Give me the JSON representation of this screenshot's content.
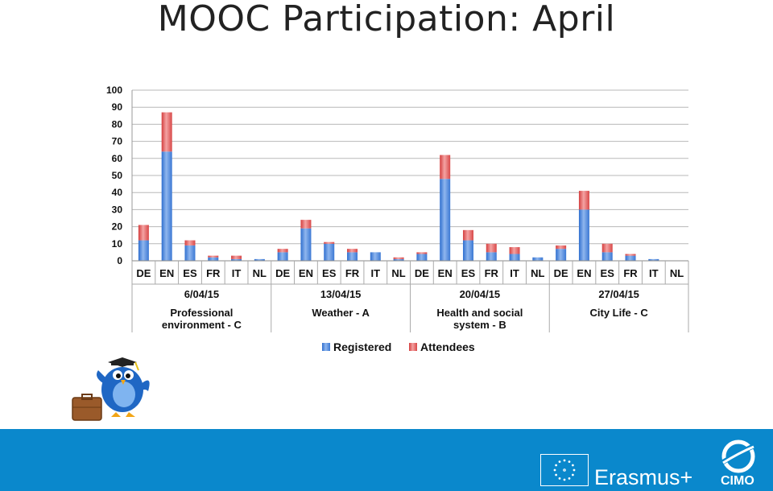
{
  "page": {
    "title": "MOOC Participation: April"
  },
  "colors": {
    "registered": "#4a86d8",
    "attendees": "#e46060",
    "footer": "#0a88cc"
  },
  "branding": {
    "program": "Erasmus+",
    "org": "CIMO"
  },
  "chart_data": {
    "type": "bar",
    "stacked": true,
    "ylim": [
      0,
      100
    ],
    "yticks": [
      0,
      10,
      20,
      30,
      40,
      50,
      60,
      70,
      80,
      90,
      100
    ],
    "grid": true,
    "legend_position": "bottom",
    "groups": [
      {
        "date": "6/04/15",
        "name": "Professional environment - C"
      },
      {
        "date": "13/04/15",
        "name": "Weather - A"
      },
      {
        "date": "20/04/15",
        "name": "Health and social system - B"
      },
      {
        "date": "27/04/15",
        "name": "City Life - C"
      }
    ],
    "categories": [
      "DE",
      "EN",
      "ES",
      "FR",
      "IT",
      "NL",
      "DE",
      "EN",
      "ES",
      "FR",
      "IT",
      "NL",
      "DE",
      "EN",
      "ES",
      "FR",
      "IT",
      "NL",
      "DE",
      "EN",
      "ES",
      "FR",
      "IT",
      "NL"
    ],
    "series": [
      {
        "name": "Registered",
        "values": [
          12,
          64,
          9,
          2,
          1,
          1,
          5,
          19,
          10,
          5,
          5,
          1,
          4,
          48,
          12,
          5,
          4,
          2,
          7,
          30,
          5,
          3,
          1,
          0
        ]
      },
      {
        "name": "Attendees",
        "values": [
          9,
          23,
          3,
          1,
          2,
          0,
          2,
          5,
          1,
          2,
          0,
          1,
          1,
          14,
          6,
          5,
          4,
          0,
          2,
          11,
          5,
          1,
          0,
          0
        ]
      }
    ]
  }
}
